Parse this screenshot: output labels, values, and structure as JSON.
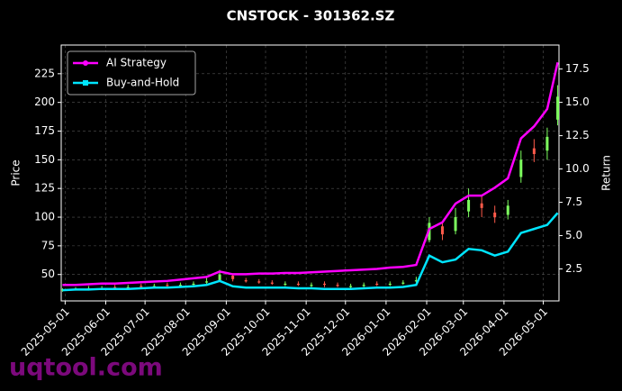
{
  "chart_data": {
    "type": "candlestick",
    "title": "CNSTOCK - 301362.SZ",
    "ylabel": "Price",
    "y2label": "Return",
    "watermark": "uqtool.com",
    "x": [
      "2025-04-29",
      "2025-05-09",
      "2025-05-19",
      "2025-05-29",
      "2025-06-08",
      "2025-06-18",
      "2025-06-28",
      "2025-07-08",
      "2025-07-18",
      "2025-07-28",
      "2025-08-07",
      "2025-08-17",
      "2025-08-27",
      "2025-09-06",
      "2025-09-16",
      "2025-09-26",
      "2025-10-06",
      "2025-10-16",
      "2025-10-26",
      "2025-11-05",
      "2025-11-15",
      "2025-11-25",
      "2025-12-05",
      "2025-12-15",
      "2025-12-25",
      "2026-01-04",
      "2026-01-14",
      "2026-01-24",
      "2026-02-03",
      "2026-02-13",
      "2026-02-23",
      "2026-03-05",
      "2026-03-15",
      "2026-03-25",
      "2026-04-04",
      "2026-04-14",
      "2026-04-24",
      "2026-05-04",
      "2026-05-12"
    ],
    "open": [
      36,
      37,
      37,
      38,
      39,
      38,
      40,
      39,
      41,
      40,
      41,
      43,
      45,
      49,
      45,
      44,
      43,
      41,
      42,
      40,
      42,
      41,
      39,
      40,
      42,
      41,
      42,
      44,
      80,
      92,
      88,
      105,
      112,
      104,
      102,
      135,
      160,
      158,
      185
    ],
    "high": [
      38,
      39,
      40,
      40,
      41,
      41,
      42,
      42,
      43,
      43,
      44,
      47,
      54,
      51,
      47,
      46,
      45,
      44,
      44,
      43,
      44,
      43,
      42,
      43,
      44,
      44,
      45,
      48,
      100,
      95,
      108,
      125,
      118,
      110,
      115,
      158,
      168,
      178,
      215
    ],
    "low": [
      35,
      36,
      36,
      37,
      37,
      37,
      38,
      38,
      39,
      39,
      40,
      42,
      44,
      44,
      43,
      42,
      41,
      40,
      40,
      39,
      39,
      39,
      38,
      39,
      40,
      40,
      41,
      43,
      78,
      80,
      85,
      100,
      100,
      95,
      98,
      130,
      148,
      150,
      180
    ],
    "close": [
      37,
      37,
      38,
      38,
      38,
      39,
      39,
      40,
      40,
      41,
      42,
      44,
      50,
      46,
      44,
      43,
      42,
      42,
      41,
      41,
      41,
      40,
      40,
      41,
      41,
      42,
      43,
      45,
      95,
      85,
      100,
      115,
      108,
      100,
      110,
      150,
      155,
      170,
      205
    ],
    "up_color": "#7dff5e",
    "down_color": "#ff5a4a",
    "series": [
      {
        "name": "AI Strategy",
        "color": "#ff00ff",
        "axis": "y2",
        "marker": "circle",
        "values": [
          1.3,
          1.3,
          1.35,
          1.4,
          1.4,
          1.45,
          1.5,
          1.55,
          1.6,
          1.7,
          1.8,
          1.9,
          2.3,
          2.1,
          2.1,
          2.15,
          2.15,
          2.2,
          2.2,
          2.25,
          2.3,
          2.35,
          2.4,
          2.45,
          2.5,
          2.6,
          2.65,
          2.8,
          5.5,
          6.0,
          7.4,
          8.0,
          8.0,
          8.6,
          9.3,
          12.3,
          13.2,
          14.5,
          18.0
        ]
      },
      {
        "name": "Buy-and-Hold",
        "color": "#00e5ff",
        "axis": "y2",
        "marker": "square",
        "values": [
          0.9,
          0.95,
          0.95,
          1.0,
          1.0,
          1.0,
          1.05,
          1.1,
          1.1,
          1.15,
          1.2,
          1.3,
          1.6,
          1.2,
          1.1,
          1.1,
          1.1,
          1.1,
          1.05,
          1.05,
          1.0,
          1.0,
          1.0,
          1.05,
          1.1,
          1.1,
          1.15,
          1.3,
          3.5,
          3.0,
          3.2,
          4.0,
          3.9,
          3.5,
          3.8,
          5.2,
          5.5,
          5.8,
          6.7
        ]
      }
    ],
    "xlim": [
      "2025-04-28",
      "2026-05-13"
    ],
    "xticks": [
      "2025-05-01",
      "2025-06-01",
      "2025-07-01",
      "2025-08-01",
      "2025-09-01",
      "2025-10-01",
      "2025-11-01",
      "2025-12-01",
      "2026-01-01",
      "2026-02-01",
      "2026-03-01",
      "2026-04-01",
      "2026-05-01"
    ],
    "ylim": [
      27,
      250
    ],
    "yticks": [
      50,
      75,
      100,
      125,
      150,
      175,
      200,
      225
    ],
    "y2lim": [
      0.1,
      19.3
    ],
    "y2ticks": [
      2.5,
      5.0,
      7.5,
      10.0,
      12.5,
      15.0,
      17.5
    ],
    "grid": true,
    "legend": "upper left"
  }
}
